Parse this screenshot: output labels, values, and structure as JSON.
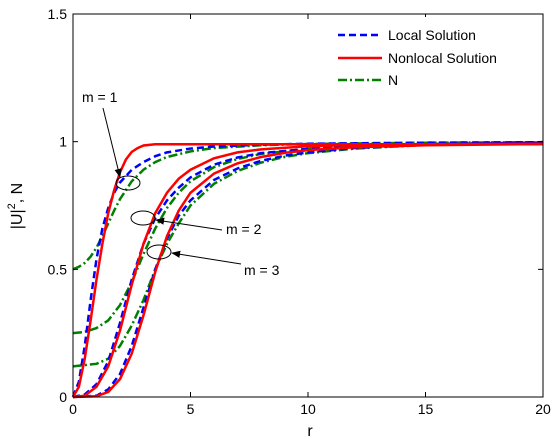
{
  "chart_data": {
    "type": "line",
    "title": "",
    "xlabel": "r",
    "ylabel_main": "|U|",
    "ylabel_sup": "2",
    "ylabel_tail": ", N",
    "xlim": [
      0,
      20
    ],
    "ylim": [
      0,
      1.5
    ],
    "xticks": [
      "0",
      "5",
      "10",
      "15",
      "20"
    ],
    "yticks": [
      "0",
      "0.5",
      "1",
      "1.5"
    ],
    "grid": false,
    "legend_position": "top-right",
    "legend": [
      {
        "label": "Local Solution",
        "style": "dashed",
        "color": "#0000ff"
      },
      {
        "label": "Nonlocal Solution",
        "style": "solid",
        "color": "#ff0000"
      },
      {
        "label": "N",
        "style": "dash-dot",
        "color": "#008000"
      }
    ],
    "series": [
      {
        "legend": "Local Solution",
        "m": 1,
        "x": [
          0,
          0.25,
          0.5,
          0.75,
          1,
          1.25,
          1.5,
          1.75,
          2,
          2.5,
          3,
          3.5,
          4,
          5,
          6,
          8,
          10,
          15,
          20
        ],
        "y": [
          0,
          0.06,
          0.2,
          0.38,
          0.54,
          0.66,
          0.74,
          0.8,
          0.84,
          0.89,
          0.92,
          0.943,
          0.958,
          0.973,
          0.981,
          0.988,
          0.992,
          0.996,
          0.998
        ]
      },
      {
        "legend": "Nonlocal Solution",
        "m": 1,
        "x": [
          0,
          0.25,
          0.5,
          0.75,
          1,
          1.25,
          1.5,
          1.75,
          2,
          2.25,
          2.5,
          2.75,
          3,
          3.5,
          4,
          5,
          10,
          20
        ],
        "y": [
          0,
          0.04,
          0.15,
          0.3,
          0.46,
          0.6,
          0.72,
          0.81,
          0.88,
          0.93,
          0.96,
          0.975,
          0.985,
          0.99,
          0.99,
          0.99,
          0.99,
          0.99
        ]
      },
      {
        "legend": "N",
        "m": 1,
        "x": [
          0,
          0.25,
          0.5,
          0.75,
          1,
          1.25,
          1.5,
          1.75,
          2,
          2.5,
          3,
          3.5,
          4,
          5,
          6,
          8,
          10,
          15,
          20
        ],
        "y": [
          0.5,
          0.51,
          0.525,
          0.55,
          0.585,
          0.63,
          0.68,
          0.73,
          0.775,
          0.845,
          0.89,
          0.92,
          0.94,
          0.962,
          0.975,
          0.986,
          0.991,
          0.996,
          0.998
        ]
      },
      {
        "legend": "Local Solution",
        "m": 2,
        "x": [
          0,
          0.5,
          1,
          1.5,
          2,
          2.5,
          3,
          3.5,
          4,
          4.5,
          5,
          6,
          7,
          8,
          10,
          12,
          15,
          20
        ],
        "y": [
          0,
          0.01,
          0.05,
          0.14,
          0.29,
          0.46,
          0.6,
          0.7,
          0.77,
          0.82,
          0.86,
          0.91,
          0.938,
          0.955,
          0.972,
          0.982,
          0.99,
          0.996
        ]
      },
      {
        "legend": "Nonlocal Solution",
        "m": 2,
        "x": [
          0,
          0.5,
          1,
          1.5,
          2,
          2.5,
          3,
          3.5,
          4,
          4.5,
          5,
          6,
          7,
          8,
          10,
          12,
          15,
          20
        ],
        "y": [
          0,
          0.005,
          0.04,
          0.12,
          0.26,
          0.44,
          0.6,
          0.72,
          0.8,
          0.855,
          0.89,
          0.935,
          0.958,
          0.97,
          0.982,
          0.987,
          0.99,
          0.992
        ]
      },
      {
        "legend": "N",
        "m": 2,
        "x": [
          0,
          0.5,
          1,
          1.5,
          2,
          2.5,
          3,
          3.5,
          4,
          4.5,
          5,
          6,
          7,
          8,
          10,
          12,
          15,
          20
        ],
        "y": [
          0.25,
          0.255,
          0.27,
          0.3,
          0.36,
          0.45,
          0.56,
          0.66,
          0.74,
          0.8,
          0.845,
          0.9,
          0.932,
          0.952,
          0.972,
          0.983,
          0.991,
          0.997
        ]
      },
      {
        "legend": "Local Solution",
        "m": 3,
        "x": [
          0,
          1,
          1.5,
          2,
          2.5,
          3,
          3.5,
          4,
          4.5,
          5,
          6,
          7,
          8,
          9,
          10,
          12,
          15,
          20
        ],
        "y": [
          0,
          0.005,
          0.03,
          0.09,
          0.2,
          0.35,
          0.5,
          0.62,
          0.71,
          0.77,
          0.85,
          0.895,
          0.925,
          0.945,
          0.958,
          0.975,
          0.988,
          0.996
        ]
      },
      {
        "legend": "Nonlocal Solution",
        "m": 3,
        "x": [
          0,
          1,
          1.5,
          2,
          2.5,
          3,
          3.5,
          4,
          4.5,
          5,
          6,
          7,
          8,
          9,
          10,
          12,
          15,
          20
        ],
        "y": [
          0,
          0.003,
          0.02,
          0.07,
          0.17,
          0.32,
          0.49,
          0.63,
          0.73,
          0.8,
          0.875,
          0.915,
          0.94,
          0.956,
          0.967,
          0.978,
          0.986,
          0.991
        ]
      },
      {
        "legend": "N",
        "m": 3,
        "x": [
          0,
          1,
          1.5,
          2,
          2.5,
          3,
          3.5,
          4,
          4.5,
          5,
          6,
          7,
          8,
          9,
          10,
          12,
          15,
          20
        ],
        "y": [
          0.12,
          0.13,
          0.15,
          0.2,
          0.28,
          0.38,
          0.5,
          0.6,
          0.68,
          0.75,
          0.835,
          0.885,
          0.918,
          0.94,
          0.955,
          0.973,
          0.987,
          0.995
        ]
      }
    ],
    "annotations": [
      {
        "text": "m = 1",
        "ellipse_at": [
          2.3,
          0.84
        ],
        "label_pos": "upper-left"
      },
      {
        "text": "m = 2",
        "ellipse_at": [
          3.0,
          0.7
        ],
        "label_pos": "right"
      },
      {
        "text": "m = 3",
        "ellipse_at": [
          3.7,
          0.57
        ],
        "label_pos": "right"
      }
    ]
  }
}
